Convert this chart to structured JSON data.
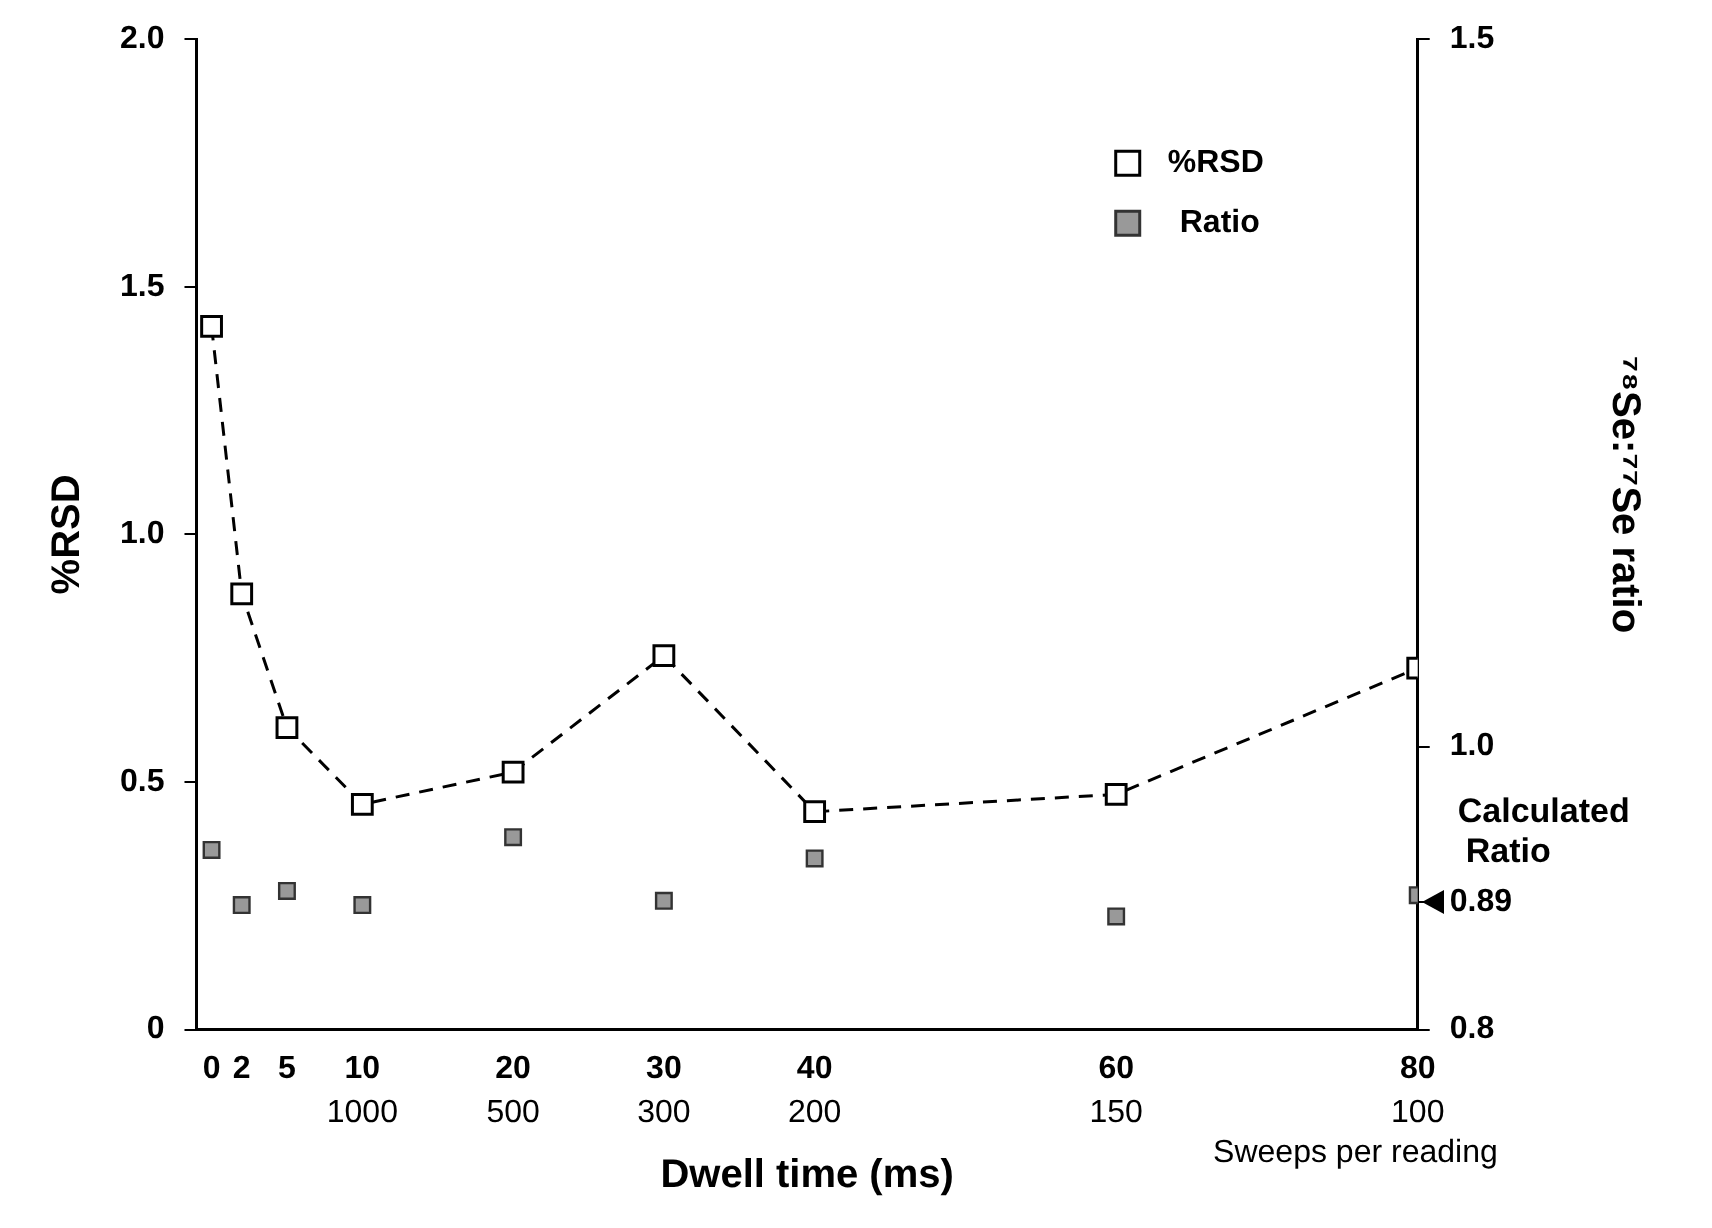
{
  "chart_data": {
    "type": "line",
    "xlabel": "Dwell time (ms)",
    "ylabel": "%RSD",
    "y2label": "⁷⁸Se:⁷⁷Se ratio",
    "x": [
      0,
      2,
      5,
      10,
      20,
      30,
      40,
      60,
      80
    ],
    "series": [
      {
        "name": "%RSD",
        "color": "#000000",
        "line_style": "dashed",
        "values": [
          1.42,
          0.88,
          0.61,
          0.455,
          0.52,
          0.755,
          0.44,
          0.475,
          0.73
        ]
      },
      {
        "name": "Ratio",
        "type": "scatter",
        "axis": "y2",
        "color": "#999999",
        "values": [
          0.927,
          0.888,
          0.898,
          0.888,
          0.936,
          0.891,
          0.921,
          0.88,
          0.895
        ]
      }
    ],
    "xlim": [
      -1,
      80
    ],
    "xticks": [
      0,
      2,
      5,
      10,
      20,
      30,
      40,
      60,
      80
    ],
    "ylim": [
      0,
      2
    ],
    "yticks": [
      0,
      {
        "value": 0.5,
        "label": "0.5"
      },
      {
        "value": 1,
        "label": "1.0"
      },
      {
        "value": 1.5,
        "label": "1.5"
      },
      {
        "value": 2,
        "label": "2.0"
      }
    ],
    "y2lim": [
      0.8,
      1.5
    ],
    "y2ticks": [
      {
        "value": 0.8,
        "label": "0.8"
      },
      {
        "value": 0.89,
        "label": "0.89"
      },
      {
        "value": 1,
        "label": "1.0"
      },
      {
        "value": 1.5,
        "label": "1.5"
      }
    ],
    "annotations": [
      "Calculated Ratio",
      "Sweeps per reading",
      "1000",
      "500",
      "300",
      "200",
      "150",
      "100"
    ],
    "marker": "square",
    "grid": false,
    "legend": "top right"
  }
}
